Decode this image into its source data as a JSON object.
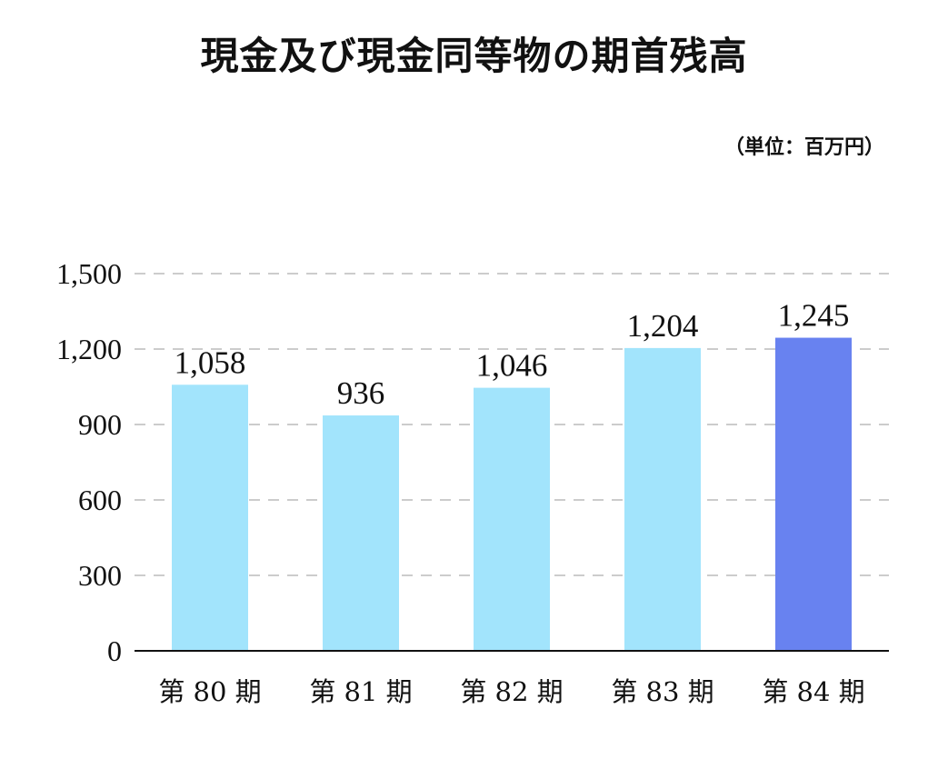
{
  "chart_data": {
    "type": "bar",
    "title": "現金及び現金同等物の期首残高",
    "unit_note": "（単位：百万円）",
    "categories": [
      "第 80 期",
      "第 81 期",
      "第 82 期",
      "第 83 期",
      "第 84 期"
    ],
    "values": [
      1058,
      936,
      1046,
      1204,
      1245
    ],
    "value_labels": [
      "1,058",
      "936",
      "1,046",
      "1,204",
      "1,245"
    ],
    "yticks": [
      0,
      300,
      600,
      900,
      1200,
      1500
    ],
    "ytick_labels": [
      "0",
      "300",
      "600",
      "900",
      "1,200",
      "1,500"
    ],
    "ylim": [
      0,
      1500
    ],
    "grid": "dashed horizontal",
    "colors": {
      "bar": "#a2e4fc",
      "highlight_bar": "#6882f0",
      "grid": "#cccccc",
      "axis": "#111111"
    },
    "highlight_index": 4
  }
}
